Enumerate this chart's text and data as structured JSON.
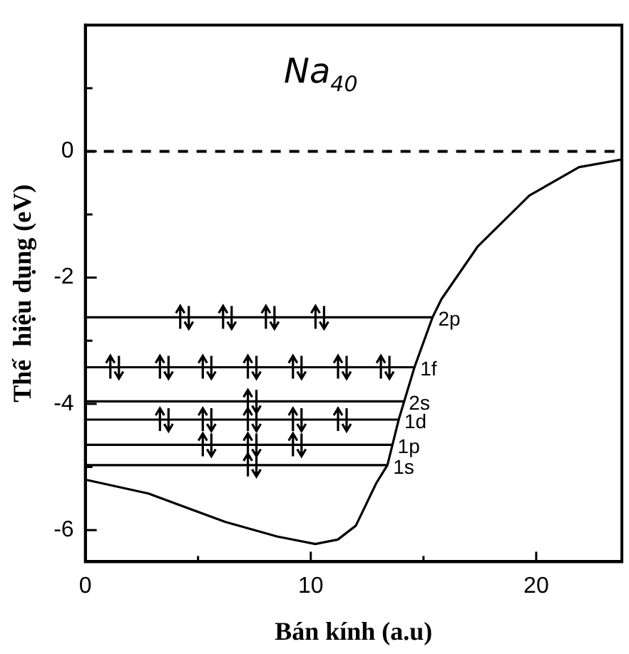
{
  "chart_data": {
    "type": "line",
    "title": "Na$_{40}$",
    "xlabel": "Bán kính (a.u)",
    "ylabel": "Thế  hiệu dụng (eV)",
    "xlim": [
      0,
      23.8
    ],
    "ylim": [
      -6.5,
      2
    ],
    "xticks": [
      0,
      {
        "value": 5,
        "label": null
      },
      10,
      {
        "value": 15,
        "label": null
      },
      20
    ],
    "yticks": [
      -6,
      {
        "value": -5,
        "label": null
      },
      -4,
      {
        "value": -3,
        "label": null
      },
      -2,
      {
        "value": -1,
        "label": null
      },
      0,
      {
        "value": 1,
        "label": null
      }
    ],
    "marker": "none",
    "ref_lines": [
      {
        "axis": "y",
        "value": 0,
        "line_style": "dashed",
        "color": "#000000"
      }
    ],
    "series": [
      {
        "color": "#000000",
        "line_style": "solid",
        "x": [
          0,
          2.8,
          6.2,
          8.5,
          10.2,
          11.2,
          12,
          12.9,
          13.4,
          13.9,
          14.6,
          15.4,
          15.8,
          17.4,
          19.7,
          21.9,
          23.8
        ],
        "values": [
          -5.2,
          -5.42,
          -5.87,
          -6.1,
          -6.22,
          -6.15,
          -5.93,
          -5.26,
          -4.97,
          -4.25,
          -3.42,
          -2.63,
          -2.34,
          -1.51,
          -0.7,
          -0.25,
          -0.13
        ]
      },
      {
        "name": "2p",
        "color": "#000000",
        "line_style": "solid",
        "x": [
          0,
          15.4
        ],
        "values": [
          -2.63,
          -2.63
        ]
      },
      {
        "name": "1f",
        "color": "#000000",
        "line_style": "solid",
        "x": [
          0,
          14.6
        ],
        "values": [
          -3.42,
          -3.42
        ]
      },
      {
        "name": "2s",
        "color": "#000000",
        "line_style": "solid",
        "x": [
          0,
          14.1
        ],
        "values": [
          -3.96,
          -3.96
        ]
      },
      {
        "name": "1d",
        "color": "#000000",
        "line_style": "solid",
        "x": [
          0,
          13.9
        ],
        "values": [
          -4.25,
          -4.25
        ]
      },
      {
        "name": "1p",
        "color": "#000000",
        "line_style": "solid",
        "x": [
          0,
          13.6
        ],
        "values": [
          -4.65,
          -4.65
        ]
      },
      {
        "name": "1s",
        "color": "#000000",
        "line_style": "solid",
        "x": [
          0,
          13.4
        ],
        "values": [
          -4.97,
          -4.97
        ]
      }
    ]
  }
}
